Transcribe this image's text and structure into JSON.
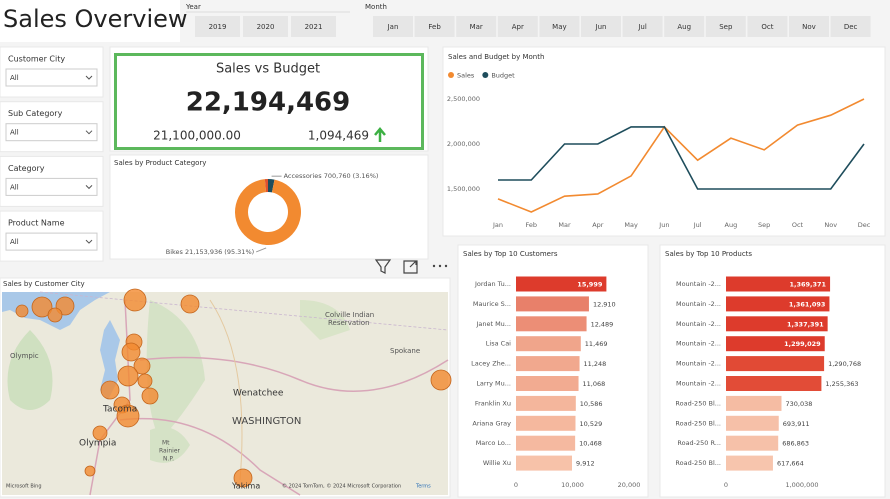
{
  "header": {
    "title": "Sales Overview"
  },
  "slicers": {
    "year": {
      "label": "Year",
      "options": [
        "2019",
        "2020",
        "2021"
      ]
    },
    "month": {
      "label": "Month",
      "options": [
        "Jan",
        "Feb",
        "Mar",
        "Apr",
        "May",
        "Jun",
        "Jul",
        "Aug",
        "Sep",
        "Oct",
        "Nov",
        "Dec"
      ]
    },
    "dropdowns": [
      {
        "label": "Customer City",
        "value": "All"
      },
      {
        "label": "Sub Category",
        "value": "All"
      },
      {
        "label": "Category",
        "value": "All"
      },
      {
        "label": "Product Name",
        "value": "All"
      }
    ]
  },
  "kpi": {
    "title": "Sales vs Budget",
    "value": "22,194,469",
    "budget": "21,100,000.00",
    "variance": "1,094,469"
  },
  "map": {
    "title": "Sales by Customer City",
    "places": [
      "Olympic",
      "Colville Indian",
      "Reservation",
      "Spokane",
      "Wenatchee",
      "WASHINGTON",
      "Tacoma",
      "Olympia",
      "Mt",
      "Rainier",
      "N.P.",
      "Yakima"
    ],
    "bing": "Microsoft Bing",
    "attribution": "© 2024 TomTom, © 2024 Microsoft Corporation",
    "terms": "Terms"
  },
  "chart_data": [
    {
      "type": "line",
      "title": "Sales and Budget by Month",
      "categories": [
        "Jan",
        "Feb",
        "Mar",
        "Apr",
        "May",
        "Jun",
        "Jul",
        "Aug",
        "Sep",
        "Oct",
        "Nov",
        "Dec"
      ],
      "series": [
        {
          "name": "Sales",
          "color": "#f28a30",
          "values": [
            1390000,
            1245000,
            1420000,
            1445000,
            1645000,
            2190000,
            1820000,
            2065000,
            1935000,
            2210000,
            2320000,
            2500000
          ]
        },
        {
          "name": "Budget",
          "color": "#1e4d5c",
          "values": [
            1600000,
            1600000,
            2000000,
            2000000,
            2190000,
            2190000,
            1500000,
            1500000,
            1500000,
            1500000,
            1500000,
            2000000
          ]
        }
      ],
      "ylim": [
        1200000,
        2600000
      ],
      "yticks": [
        {
          "value": 1500000,
          "label": "1,500,000"
        },
        {
          "value": 2000000,
          "label": "2,000,000"
        },
        {
          "value": 2500000,
          "label": "2,500,000"
        }
      ],
      "legend": "top-left",
      "grid": false
    },
    {
      "type": "pie",
      "donut": true,
      "title": "Sales by Product Category",
      "categories": [
        "Accessories",
        "Bikes",
        null
      ],
      "values": [
        700760,
        21153936,
        339773
      ],
      "value_labels": [
        "700,760 (3.16%)",
        "21,153,936 (95.31%)",
        null
      ],
      "colors": [
        "#1e4d5c",
        "#f28a30",
        "#e0522e"
      ]
    },
    {
      "type": "bar",
      "orientation": "horizontal",
      "title": "Sales by Top 10 Customers",
      "categories": [
        "Jordan Tu...",
        "Maurice S...",
        "Janet Mu...",
        "Lisa Cai",
        "Lacey Zhe...",
        "Larry Mu...",
        "Franklin Xu",
        "Ariana Gray",
        "Marco Lo...",
        "Willie Xu"
      ],
      "values": [
        15999,
        12910,
        12489,
        11469,
        11248,
        11068,
        10586,
        10529,
        10468,
        9912
      ],
      "value_labels": [
        "15,999",
        "12,910",
        "12,489",
        "11,469",
        "11,248",
        "11,068",
        "10,586",
        "10,529",
        "10,468",
        "9,912"
      ],
      "colors": [
        "#dd3b2c",
        "#e8806a",
        "#ec8e76",
        "#f0a58b",
        "#f1a88e",
        "#f2ab91",
        "#f4b69c",
        "#f5b89e",
        "#f5b9a0",
        "#f7c2a9"
      ],
      "xlim": [
        0,
        22000
      ],
      "xticks": [
        0,
        {
          "value": 10000,
          "label": "10,000"
        },
        {
          "value": 20000,
          "label": "20,000"
        }
      ]
    },
    {
      "type": "bar",
      "orientation": "horizontal",
      "title": "Sales by Top 10 Products",
      "categories": [
        "Mountain -2...",
        "Mountain -2...",
        "Mountain -2...",
        "Mountain -2...",
        "Mountain -2...",
        "Mountain -2...",
        "Road-250 Bl...",
        "Road-250 Bl...",
        "Road-250 R...",
        "Road-250 Bl..."
      ],
      "values": [
        1369371,
        1361093,
        1337391,
        1299029,
        1290768,
        1255363,
        730038,
        693911,
        686863,
        617664
      ],
      "value_labels": [
        "1,369,371",
        "1,361,093",
        "1,337,391",
        "1,299,029",
        "1,290,768",
        "1,255,363",
        "730,038",
        "693,911",
        "686,863",
        "617,664"
      ],
      "colors": [
        "#dd3b2c",
        "#dd3b2c",
        "#dd3b2c",
        "#dd3b2c",
        "#e14a35",
        "#e24c37",
        "#f5bca3",
        "#f6c0a8",
        "#f6c1a9",
        "#f7c5ad"
      ],
      "xlim": [
        0,
        1600000
      ],
      "xticks": [
        0,
        {
          "value": 1000000,
          "label": "1,000,000"
        }
      ]
    }
  ]
}
